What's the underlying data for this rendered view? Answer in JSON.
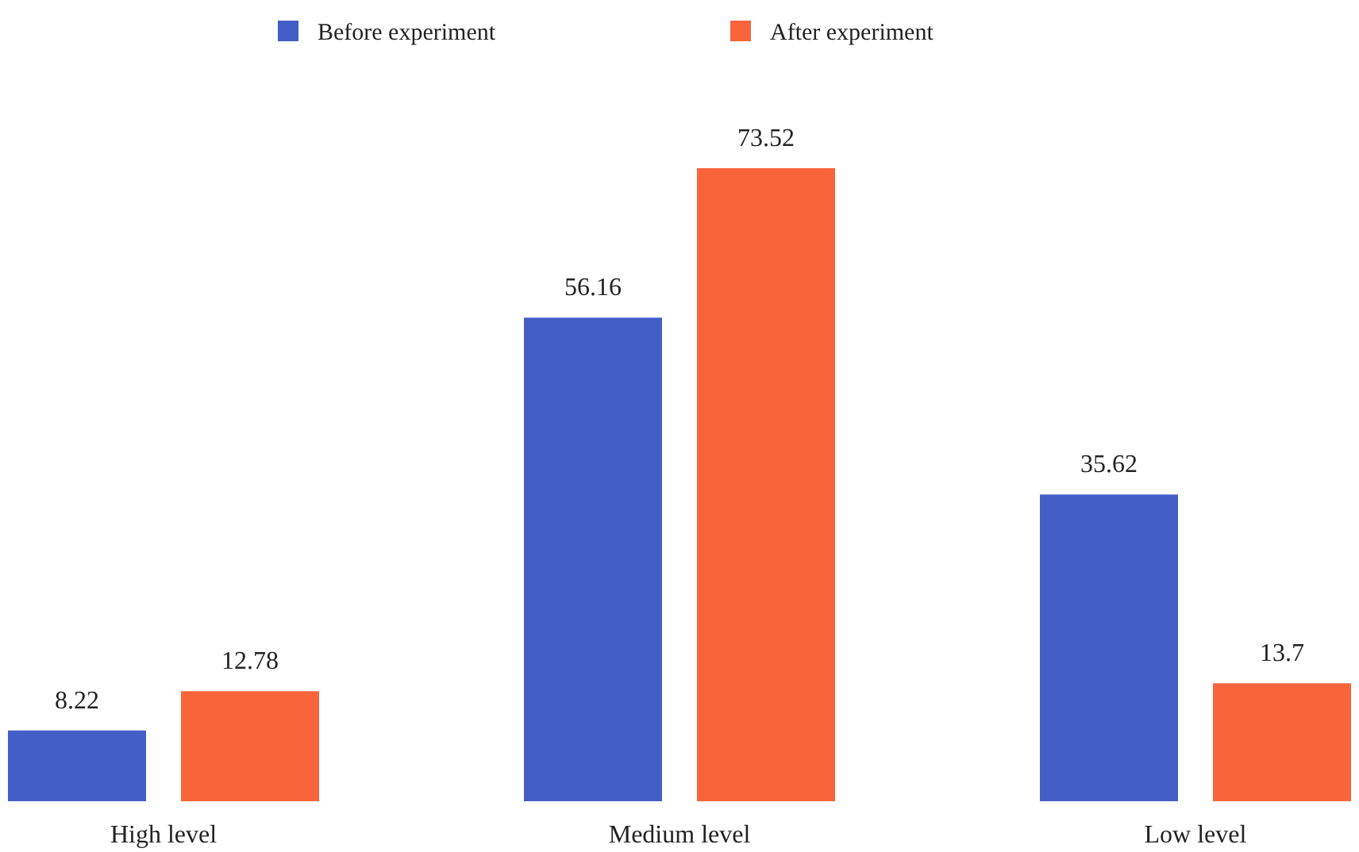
{
  "chart_data": {
    "type": "bar",
    "categories": [
      "High level",
      "Medium level",
      "Low level"
    ],
    "series": [
      {
        "name": "Before experiment",
        "color": "#435ec7",
        "values": [
          8.22,
          56.16,
          35.62
        ]
      },
      {
        "name": "After experiment",
        "color": "#f9643b",
        "values": [
          12.78,
          73.52,
          13.7
        ]
      }
    ],
    "data_labels": true,
    "legend": "top"
  }
}
